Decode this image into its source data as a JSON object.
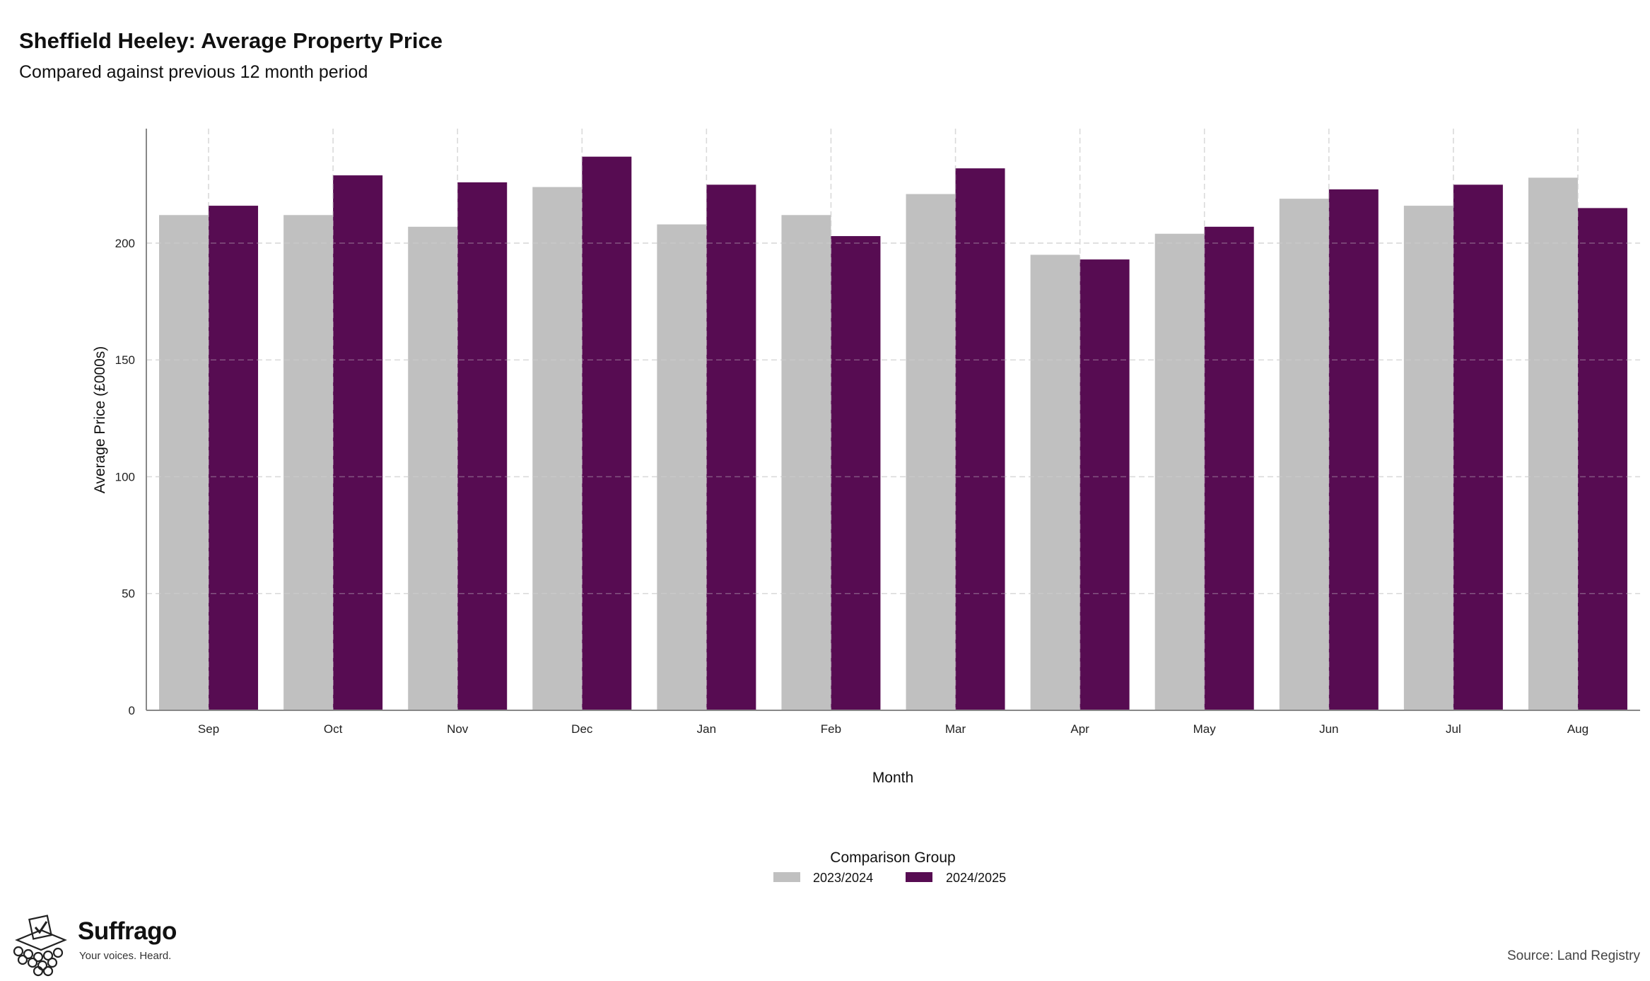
{
  "header": {
    "title": "Sheffield Heeley: Average Property Price",
    "subtitle": "Compared against previous 12 month period"
  },
  "footer": {
    "brand_name": "Suffrago",
    "brand_tagline": "Your voices. Heard.",
    "source": "Source: Land Registry"
  },
  "colors": {
    "series_prev": "#c0c0c0",
    "series_curr": "#570c52",
    "grid": "#d9d9d9",
    "axis": "#888888"
  },
  "chart_data": {
    "type": "bar",
    "title": "Sheffield Heeley: Average Property Price",
    "subtitle": "Compared against previous 12 month period",
    "xlabel": "Month",
    "ylabel": "Average Price (£000s)",
    "ylim": [
      0,
      249
    ],
    "yticks": [
      0,
      50,
      100,
      150,
      200
    ],
    "grid": true,
    "legend_title": "Comparison Group",
    "legend_position": "bottom",
    "categories": [
      "Sep",
      "Oct",
      "Nov",
      "Dec",
      "Jan",
      "Feb",
      "Mar",
      "Apr",
      "May",
      "Jun",
      "Jul",
      "Aug"
    ],
    "series": [
      {
        "name": "2023/2024",
        "color": "#c0c0c0",
        "values": [
          212,
          212,
          207,
          224,
          208,
          212,
          221,
          195,
          204,
          219,
          216,
          228
        ]
      },
      {
        "name": "2024/2025",
        "color": "#570c52",
        "values": [
          216,
          229,
          226,
          237,
          225,
          203,
          232,
          193,
          207,
          223,
          225,
          215
        ]
      }
    ]
  }
}
